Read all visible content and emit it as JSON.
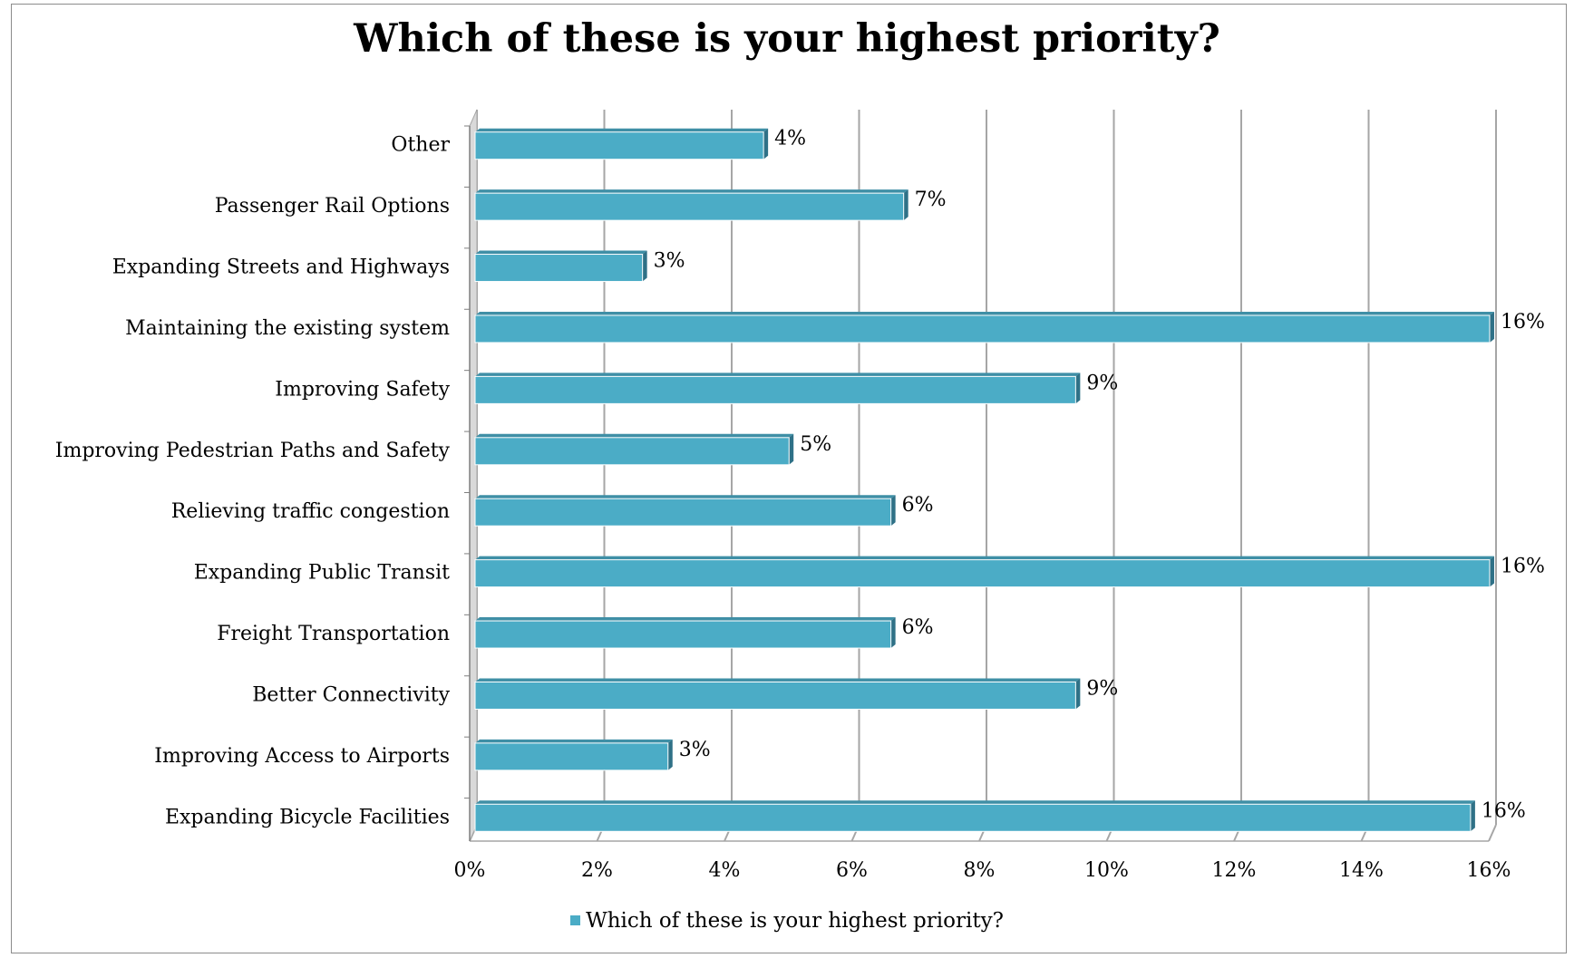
{
  "chart_data": {
    "type": "bar",
    "orientation": "horizontal",
    "title": "Which of these is your highest priority?",
    "categories": [
      "Other",
      "Passenger Rail Options",
      "Expanding Streets and Highways",
      "Maintaining the existing system",
      "Improving Safety",
      "Improving Pedestrian Paths and Safety",
      "Relieving traffic congestion",
      "Expanding Public Transit",
      "Freight Transportation",
      "Better Connectivity",
      "Improving Access to Airports",
      "Expanding Bicycle Facilities"
    ],
    "series": [
      {
        "name": "Which of these is your highest priority?",
        "values": [
          4.5,
          6.7,
          2.6,
          15.9,
          9.4,
          4.9,
          6.5,
          15.9,
          6.5,
          9.4,
          3.0,
          15.6
        ],
        "labels": [
          "4%",
          "7%",
          "3%",
          "16%",
          "9%",
          "5%",
          "6%",
          "16%",
          "6%",
          "9%",
          "3%",
          "16%"
        ]
      }
    ],
    "x_ticks": [
      "0%",
      "2%",
      "4%",
      "6%",
      "8%",
      "10%",
      "12%",
      "14%",
      "16%"
    ],
    "xlim": [
      0,
      16
    ],
    "grid": true,
    "legend": "bottom",
    "colors": {
      "bar": "#4bacc6",
      "bar_top": "#3f8fa6",
      "bar_end": "#2f7187",
      "grid": "#a6a6a6"
    }
  }
}
